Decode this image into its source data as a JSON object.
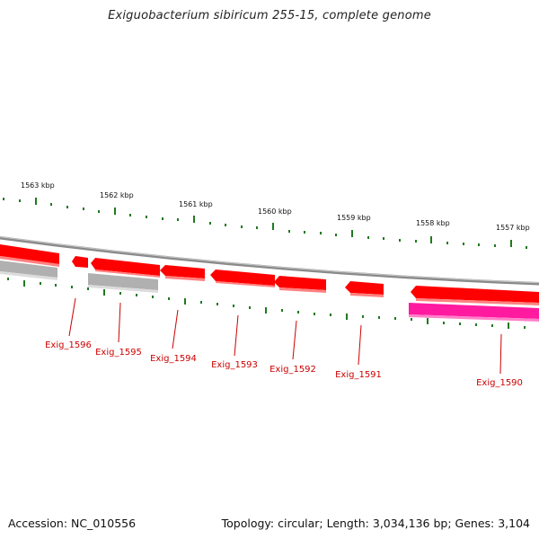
{
  "title": "Exiguobacterium sibiricum 255-15, complete genome",
  "accession_text": "Accession: NC_010556",
  "summary_text": "Topology: circular; Length: 3,034,136 bp; Genes: 3,104",
  "colors": {
    "backbone": "#8a8a8a",
    "tick": "#1f7a1f",
    "gene_forward": "#ff0000",
    "gene_reverse_gray": "#b0b0b0",
    "gene_pink": "#ff1aa0",
    "label": "#cc0000"
  },
  "scale_labels": [
    "1563 kbp",
    "1562 kbp",
    "1561 kbp",
    "1560 kbp",
    "1559 kbp",
    "1558 kbp",
    "1557 kbp"
  ],
  "gene_labels": [
    "Exig_1596",
    "Exig_1595",
    "Exig_1594",
    "Exig_1593",
    "Exig_1592",
    "Exig_1591",
    "Exig_1590"
  ]
}
